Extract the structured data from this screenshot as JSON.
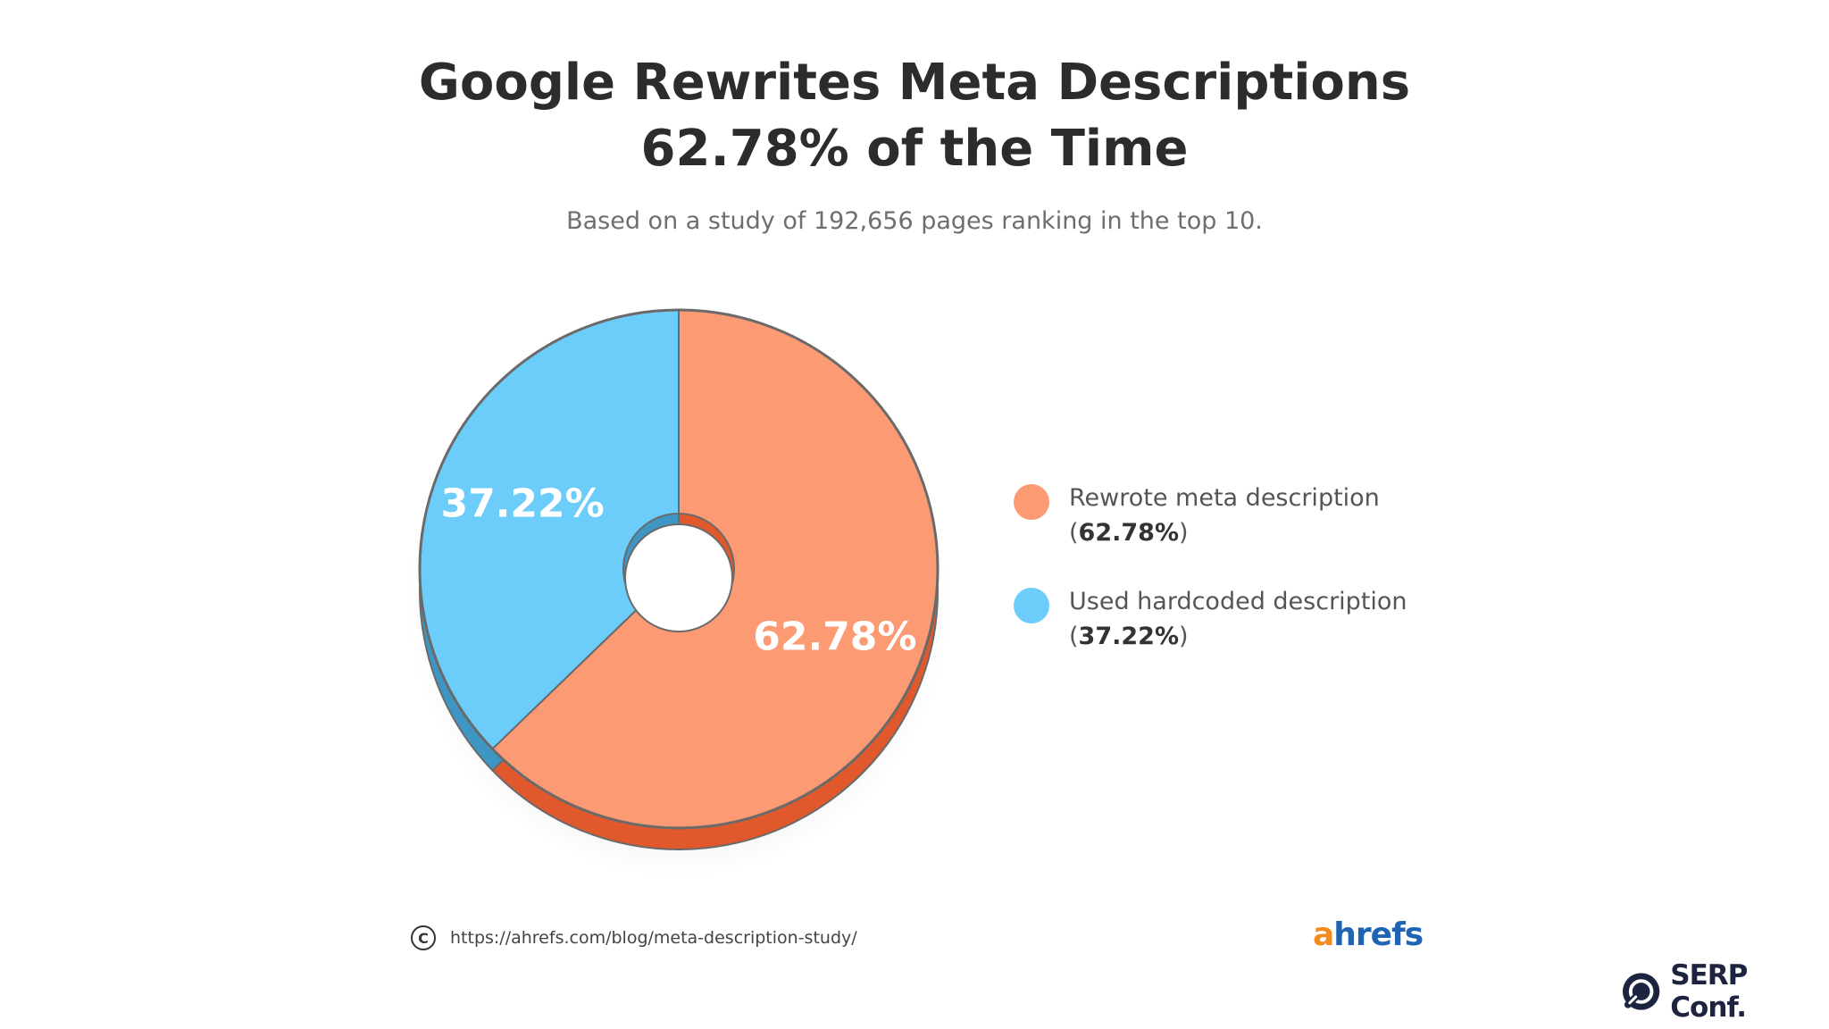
{
  "chart_data": {
    "type": "pie",
    "title_line1": "Google Rewrites Meta Descriptions",
    "title_line2": "62.78% of the Time",
    "subtitle": "Based on a study of 192,656 pages ranking in the top 10.",
    "slices": [
      {
        "name": "Rewrote meta description",
        "value": 62.78,
        "label": "62.78%",
        "legend_pct": "62.78%",
        "color": "#fc9a73",
        "side_color": "#e0582b"
      },
      {
        "name": "Used hardcoded description",
        "value": 37.22,
        "label": "37.22%",
        "legend_pct": "37.22%",
        "color": "#6ccdfb",
        "side_color": "#3d96c4"
      }
    ],
    "legend_position": "right"
  },
  "footer": {
    "copyright_symbol": "C",
    "source_url": "https://ahrefs.com/blog/meta-description-study/",
    "brand_first": "a",
    "brand_rest": "hrefs",
    "conference": "SERP Conf."
  },
  "icons": {
    "copyright": "copyright-icon",
    "conference_logo": "serp-logo-icon"
  }
}
